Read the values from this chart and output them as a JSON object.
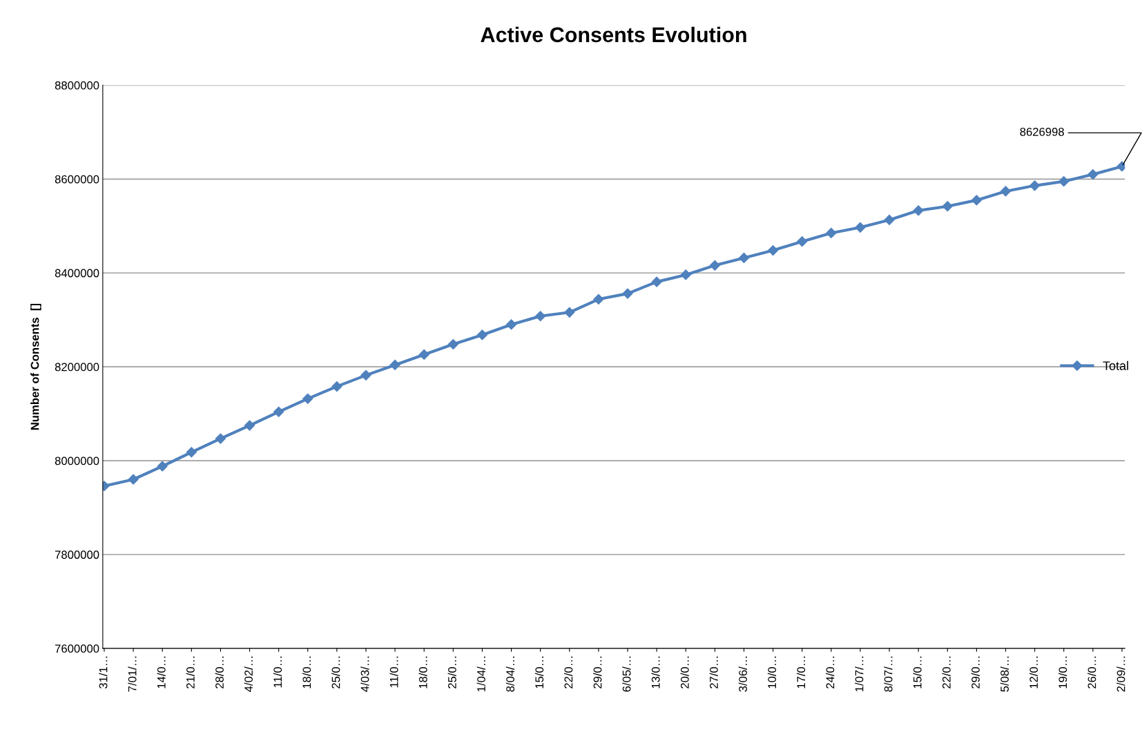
{
  "chart_data": {
    "type": "line",
    "title": "Active Consents Evolution",
    "ylabel": "Number of Consents  []",
    "categories": [
      "31/1…",
      "7/01/…",
      "14/0…",
      "21/0…",
      "28/0…",
      "4/02/…",
      "11/0…",
      "18/0…",
      "25/0…",
      "4/03/…",
      "11/0…",
      "18/0…",
      "25/0…",
      "1/04/…",
      "8/04/…",
      "15/0…",
      "22/0…",
      "29/0…",
      "6/05/…",
      "13/0…",
      "20/0…",
      "27/0…",
      "3/06/…",
      "10/0…",
      "17/0…",
      "24/0…",
      "1/07/…",
      "8/07/…",
      "15/0…",
      "22/0…",
      "29/0…",
      "5/08/…",
      "12/0…",
      "19/0…",
      "26/0…",
      "2/09/…"
    ],
    "series": [
      {
        "name": "Total",
        "color": "#4f81bd",
        "values": [
          7946000,
          7960000,
          7988000,
          8018000,
          8047000,
          8075000,
          8104000,
          8132000,
          8158000,
          8182000,
          8204000,
          8226000,
          8248000,
          8268000,
          8290000,
          8308000,
          8316000,
          8344000,
          8356000,
          8381000,
          8396000,
          8416000,
          8432000,
          8448000,
          8467000,
          8485000,
          8497000,
          8513000,
          8533000,
          8542000,
          8555000,
          8574000,
          8586000,
          8595000,
          8610000,
          8626998
        ],
        "value_labels": [
          null,
          null,
          null,
          null,
          null,
          null,
          null,
          null,
          null,
          null,
          null,
          null,
          null,
          null,
          null,
          null,
          null,
          null,
          null,
          null,
          null,
          null,
          null,
          null,
          null,
          null,
          null,
          null,
          null,
          null,
          null,
          null,
          null,
          null,
          null,
          "8626998"
        ]
      }
    ],
    "ylim": [
      7600000,
      8800000
    ],
    "yticks": [
      7600000,
      7800000,
      8000000,
      8200000,
      8400000,
      8600000,
      8800000
    ],
    "grid": "y",
    "legend": "right",
    "marker": "diamond",
    "line_style": "solid"
  }
}
